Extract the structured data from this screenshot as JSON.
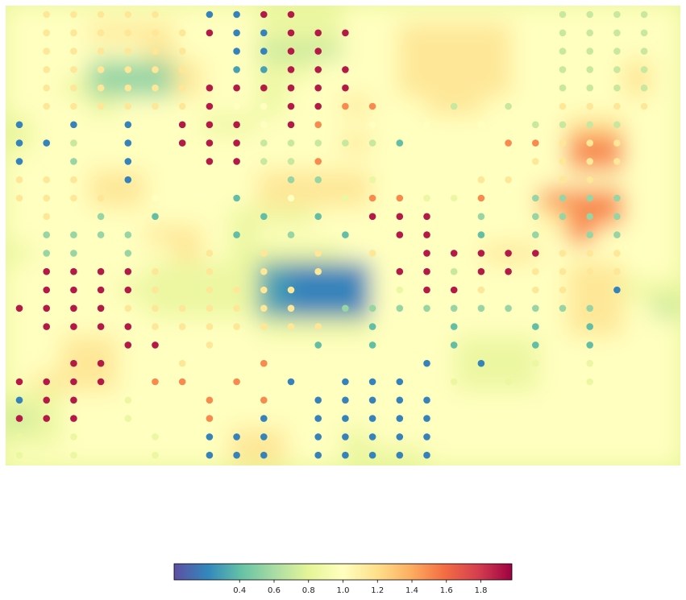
{
  "chart_data": {
    "type": "heatmap",
    "title": "",
    "xlabel": "",
    "ylabel": "",
    "grid": false,
    "description_of_marks": "interpolated background field with scatter point overlay; both use the same diverging colormap",
    "colormap": {
      "name": "Spectral_r",
      "stops": [
        "#5e4fa2",
        "#3288bd",
        "#66c2a5",
        "#abdda4",
        "#e6f598",
        "#ffffbf",
        "#fee08b",
        "#fdae61",
        "#f46d43",
        "#d53e4f",
        "#9e0142"
      ]
    },
    "colorbar": {
      "orientation": "horizontal",
      "placement": "bottom-center",
      "vmin": 0.02,
      "vmax": 1.98,
      "ticks": [
        0.4,
        0.6,
        0.8,
        1.0,
        1.2,
        1.4,
        1.6,
        1.8
      ],
      "tick_labels": [
        "0.4",
        "0.6",
        "0.8",
        "1.0",
        "1.2",
        "1.4",
        "1.6",
        "1.8"
      ]
    },
    "grid_columns": 24,
    "grid_rows": 25,
    "value_codes": {
      "0": 0.2,
      "1": 0.3,
      "2": 0.4,
      "3": 0.55,
      "4": 0.7,
      "5": 0.85,
      "6": 1.0,
      "7": 1.15,
      "8": 1.3,
      "9": 1.5,
      "A": 1.7,
      "B": 1.9,
      ".": null
    },
    "field_rows": [
      "666666666555666666666666",
      "666777666555667777666666",
      "666667666444667777666666",
      "666333766556667777666676",
      "665333766566667777666676",
      "666566666566766776666666",
      "566666655666666666667766",
      "566666666666766666669966",
      "666666666666666666669966",
      "666776666777766666666666",
      "666776666777766666699966",
      "666666665556666666679966",
      "666667765666666666669666",
      "566666765555666667766666",
      "666665555100066666667766",
      "666655555100066666667755",
      "666665555100066666667764",
      "666666666555566666667766",
      "667766666666666655566666",
      "667766666666666655566666",
      "677766666666666655566666",
      "556666666666666666666666",
      "456666666666666666666666",
      "556666667766566666666666",
      "666666667766555666666666"
    ],
    "point_rows": [
      ".77777.00BB.........4444",
      ".777777B00BBB.......4444",
      ".777777.00BB........4444",
      ".777777.11BBB.......4444",
      ".777777BBBBBB.......4444",
      ".777777B66BB99..4.4.7777",
      "0.0.0.BBB6B9.6.6.6.4444",
      "004.0.BBB444442...99777",
      "0.3.0.6BB449.......7777",
      "777.0.6.6.33.5...77.77.",
      "7777.6..2.6.599559.3333",
      ".7.3.2...2.2.BBB.3.3333",
      ".3333...2.3.2.BB.2.3.33",
      ".33.3..7.7.7.7.BBBBB777",
      ".BBBB7.7.7.7..BB4BB7777",
      ".BBBB7.7777...5BB7.7770",
      "BBBB7777777.3333333333.",
      ".BBBB7777777.2..2..2.2.",
      "....BB.7...2.2..2..2.2.",
      "..BB..7..9.....0.0.5.5.",
      "BBBB.99.9.0.000.5.5..5.",
      "0BB.5..9.9.00000.......",
      "BBB.5..9.0.00000.......",
      "5.5..5.000.00000.......",
      "5.5..5.000.00000......."
    ]
  }
}
